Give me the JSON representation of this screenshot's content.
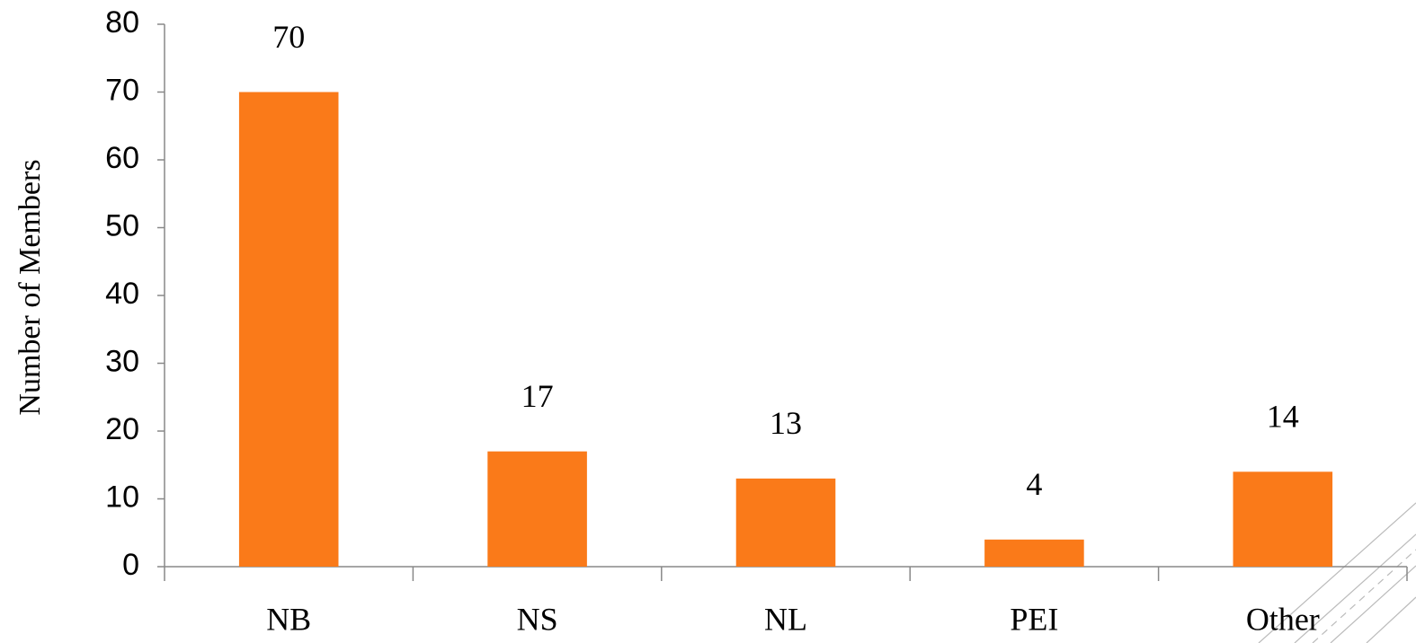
{
  "chart_data": {
    "type": "bar",
    "y_label": "Number of Members",
    "categories": [
      "NB",
      "NS",
      "NL",
      "PEI",
      "Other"
    ],
    "values": [
      70,
      17,
      13,
      4,
      14
    ],
    "color": "#fa7a19",
    "ylim": [
      0,
      80
    ],
    "yticks": [
      0,
      10,
      20,
      30,
      40,
      50,
      60,
      70,
      80
    ]
  }
}
